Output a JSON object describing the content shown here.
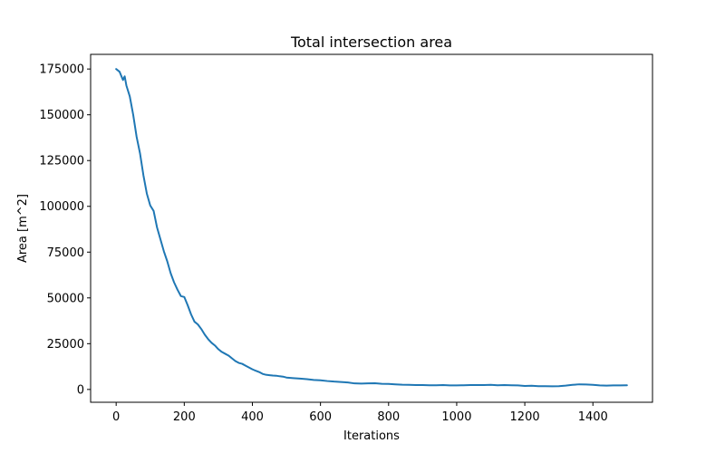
{
  "chart_data": {
    "type": "line",
    "title": "Total intersection area",
    "xlabel": "Iterations",
    "ylabel": "Area [m^2]",
    "xlim": [
      -75,
      1575
    ],
    "ylim": [
      -7000,
      183000
    ],
    "grid": false,
    "legend": "none",
    "xticks": [
      0,
      200,
      400,
      600,
      800,
      1000,
      1200,
      1400
    ],
    "xtick_labels": [
      "0",
      "200",
      "400",
      "600",
      "800",
      "1000",
      "1200",
      "1400"
    ],
    "yticks": [
      0,
      25000,
      50000,
      75000,
      100000,
      125000,
      150000,
      175000
    ],
    "ytick_labels": [
      "0",
      "25000",
      "50000",
      "75000",
      "100000",
      "125000",
      "150000",
      "175000"
    ],
    "series": [
      {
        "color": "#1f77b4",
        "x": [
          0,
          10,
          20,
          25,
          30,
          40,
          50,
          60,
          70,
          80,
          90,
          100,
          110,
          120,
          130,
          140,
          150,
          160,
          170,
          180,
          190,
          200,
          210,
          220,
          230,
          240,
          250,
          260,
          270,
          280,
          290,
          300,
          310,
          320,
          330,
          340,
          350,
          360,
          370,
          380,
          390,
          400,
          410,
          420,
          430,
          440,
          450,
          460,
          470,
          480,
          490,
          500,
          520,
          540,
          560,
          580,
          600,
          620,
          640,
          660,
          680,
          700,
          720,
          740,
          760,
          780,
          800,
          820,
          840,
          860,
          880,
          900,
          920,
          940,
          960,
          980,
          1000,
          1020,
          1040,
          1060,
          1080,
          1100,
          1120,
          1140,
          1160,
          1180,
          1200,
          1220,
          1240,
          1260,
          1280,
          1300,
          1320,
          1340,
          1360,
          1380,
          1400,
          1420,
          1440,
          1460,
          1480,
          1500
        ],
        "y": [
          175000,
          173500,
          169000,
          171000,
          166000,
          160000,
          150000,
          138000,
          129000,
          117000,
          107000,
          100500,
          97500,
          88500,
          82000,
          75500,
          70000,
          63500,
          58500,
          54500,
          51000,
          50500,
          46000,
          41000,
          37000,
          35500,
          33000,
          30000,
          27500,
          25500,
          24000,
          22000,
          20500,
          19500,
          18500,
          17000,
          15500,
          14500,
          14000,
          13000,
          12000,
          11000,
          10200,
          9500,
          8500,
          8000,
          7800,
          7600,
          7500,
          7200,
          7000,
          6500,
          6200,
          5900,
          5600,
          5200,
          5000,
          4600,
          4300,
          4100,
          3800,
          3300,
          3200,
          3300,
          3400,
          3100,
          3000,
          2800,
          2600,
          2500,
          2400,
          2400,
          2300,
          2300,
          2400,
          2200,
          2200,
          2300,
          2400,
          2400,
          2400,
          2500,
          2300,
          2400,
          2300,
          2200,
          1900,
          2000,
          1800,
          1800,
          1700,
          1800,
          2100,
          2500,
          2800,
          2700,
          2500,
          2200,
          2100,
          2200,
          2200,
          2300
        ]
      }
    ]
  }
}
